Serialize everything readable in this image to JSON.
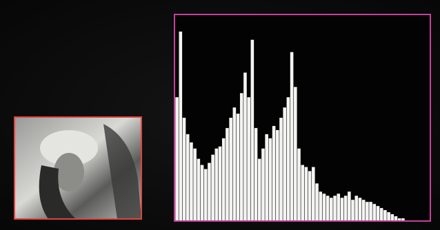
{
  "chart_data": {
    "type": "bar",
    "color": "#f4f4f2",
    "categories": [
      null,
      null,
      null,
      null,
      null,
      null,
      null,
      null,
      null,
      null,
      null,
      null,
      null,
      null,
      null,
      null,
      null,
      null,
      null,
      null,
      null,
      null,
      null,
      null,
      null,
      null,
      null,
      null,
      null,
      null,
      null,
      null,
      null,
      null,
      null,
      null,
      null,
      null,
      null,
      null,
      null,
      null,
      null,
      null,
      null,
      null,
      null,
      null,
      null,
      null,
      null,
      null,
      null,
      null,
      null,
      null,
      null,
      null,
      null,
      null,
      null,
      null,
      null,
      null
    ],
    "values": [
      60,
      92,
      50,
      42,
      38,
      35,
      30,
      27,
      25,
      28,
      32,
      35,
      36,
      40,
      45,
      50,
      55,
      52,
      62,
      72,
      60,
      88,
      45,
      30,
      35,
      42,
      40,
      46,
      44,
      50,
      55,
      60,
      82,
      65,
      35,
      27,
      26,
      24,
      26,
      18,
      14,
      13,
      12,
      11,
      12,
      13,
      11,
      12,
      14,
      10,
      12,
      11,
      10,
      9,
      9,
      8,
      7,
      6,
      5,
      4,
      3,
      2,
      1,
      1
    ],
    "ylim": [
      0,
      100
    ]
  }
}
